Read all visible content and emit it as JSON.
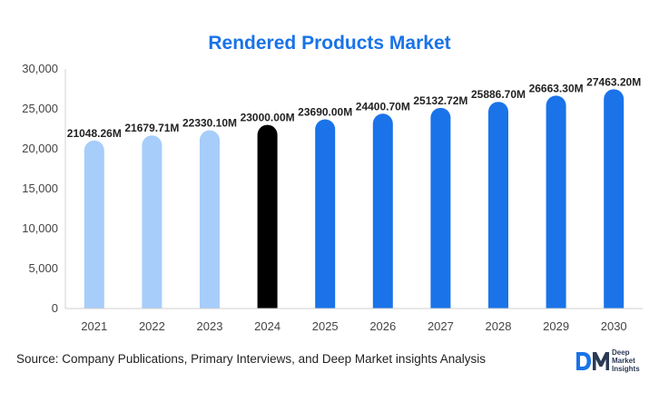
{
  "chart_data": {
    "type": "bar",
    "title": "Rendered Products Market",
    "xlabel": "",
    "ylabel": "",
    "categories": [
      "2021",
      "2022",
      "2023",
      "2024",
      "2025",
      "2026",
      "2027",
      "2028",
      "2029",
      "2030"
    ],
    "values": [
      21048.26,
      21679.71,
      22330.1,
      23000.0,
      23690.0,
      24400.7,
      25132.72,
      25886.7,
      26663.3,
      27463.2
    ],
    "data_labels": [
      "21048.26M",
      "21679.71M",
      "22330.10M",
      "23000.00M",
      "23690.00M",
      "24400.70M",
      "25132.72M",
      "25886.70M",
      "26663.30M",
      "27463.20M"
    ],
    "ylim": [
      0,
      30000
    ],
    "yticks": [
      0,
      5000,
      10000,
      15000,
      20000,
      25000,
      30000
    ],
    "ytick_labels": [
      "0",
      "5,000",
      "10,000",
      "15,000",
      "20,000",
      "25,000",
      "30,000"
    ],
    "grid": false,
    "bar_colors": [
      "#a7cdfa",
      "#a7cdfa",
      "#a7cdfa",
      "#000000",
      "#1a73e8",
      "#1a73e8",
      "#1a73e8",
      "#1a73e8",
      "#1a73e8",
      "#1a73e8"
    ]
  },
  "footer": {
    "source_label": "Source",
    "source_text": ": Company Publications, Primary Interviews, and Deep Market insights Analysis"
  },
  "logo": {
    "mark": "DM",
    "line1": "Deep",
    "line2": "Market",
    "line3": "Insights",
    "color": "#1a73e8"
  }
}
